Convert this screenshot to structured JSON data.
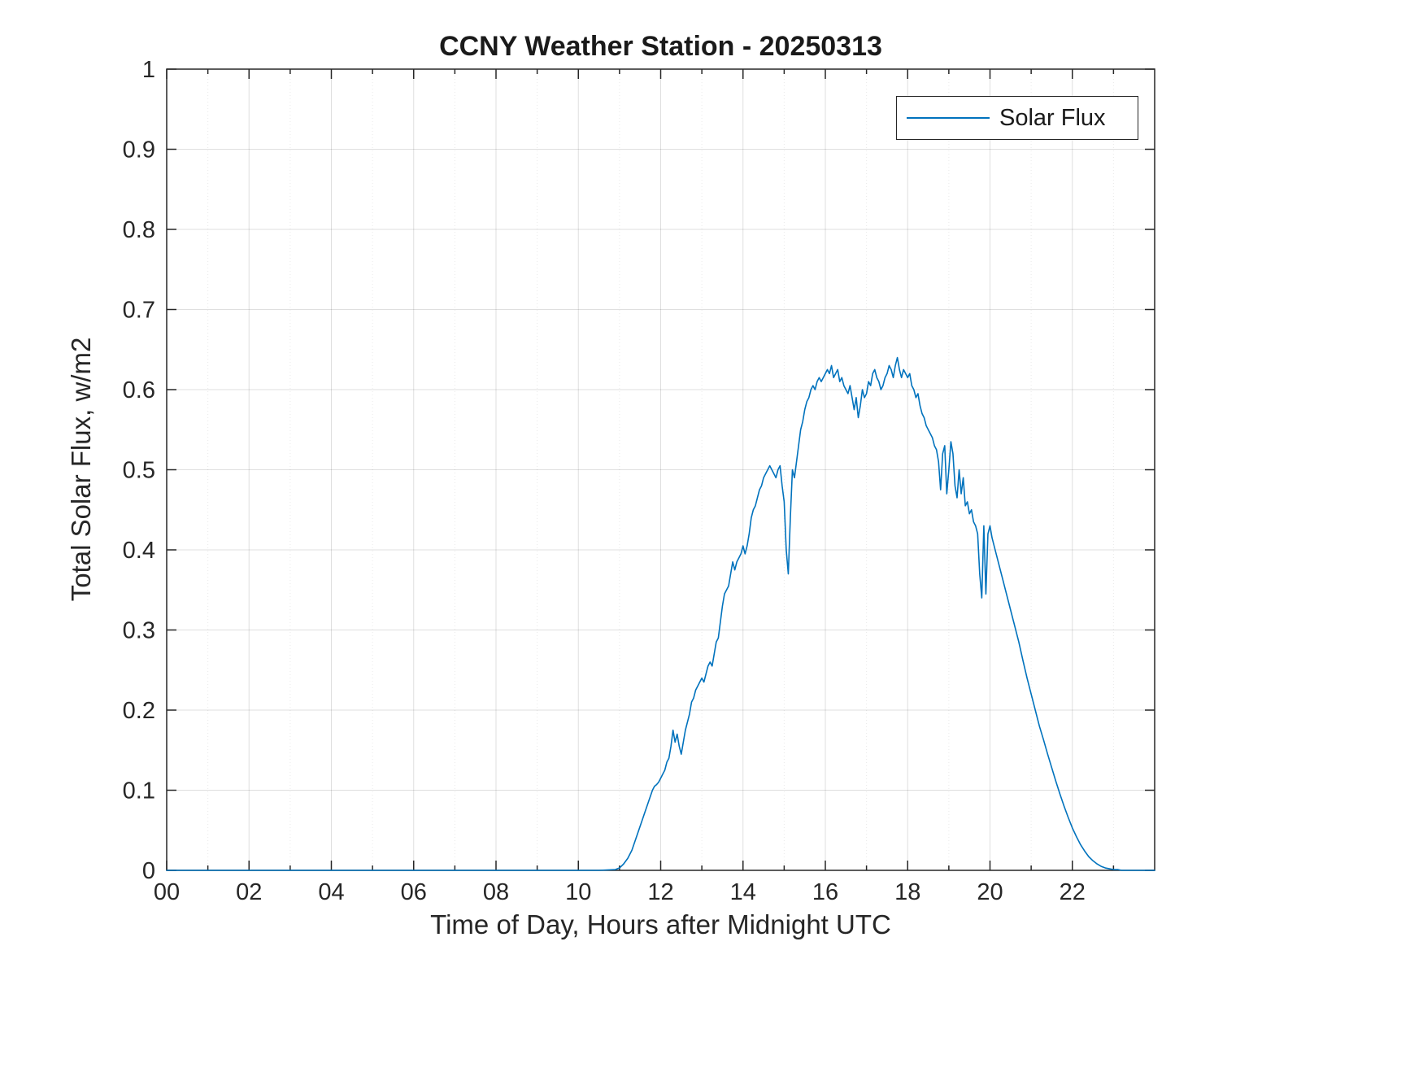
{
  "chart_data": {
    "type": "line",
    "title": "CCNY Weather Station - 20250313",
    "xlabel": "Time of Day, Hours after Midnight UTC",
    "ylabel": "Total Solar Flux, w/m2",
    "xlim": [
      0,
      24
    ],
    "ylim": [
      0,
      1
    ],
    "grid": true,
    "x_minor_step": 1,
    "legend": {
      "position": "northeast",
      "entries": [
        "Solar Flux"
      ]
    },
    "colors": {
      "line": "#0072BD",
      "axis": "#262626",
      "grid": "#262626",
      "background": "#ffffff"
    },
    "xticks": {
      "values": [
        0,
        2,
        4,
        6,
        8,
        10,
        12,
        14,
        16,
        18,
        20,
        22
      ],
      "labels": [
        "00",
        "02",
        "04",
        "06",
        "08",
        "10",
        "12",
        "14",
        "16",
        "18",
        "20",
        "22"
      ]
    },
    "yticks": {
      "values": [
        0,
        0.1,
        0.2,
        0.3,
        0.4,
        0.5,
        0.6,
        0.7,
        0.8,
        0.9,
        1
      ],
      "labels": [
        "0",
        "0.1",
        "0.2",
        "0.3",
        "0.4",
        "0.5",
        "0.6",
        "0.7",
        "0.8",
        "0.9",
        "1"
      ]
    },
    "series": [
      {
        "name": "Solar Flux",
        "color": "#0072BD",
        "points": [
          [
            0,
            0
          ],
          [
            1,
            0
          ],
          [
            2,
            0
          ],
          [
            3,
            0
          ],
          [
            4,
            0
          ],
          [
            5,
            0
          ],
          [
            6,
            0
          ],
          [
            7,
            0
          ],
          [
            8,
            0
          ],
          [
            9,
            0
          ],
          [
            10,
            0
          ],
          [
            10.5,
            0
          ],
          [
            10.9,
            0.001
          ],
          [
            11,
            0.003
          ],
          [
            11.1,
            0.008
          ],
          [
            11.2,
            0.015
          ],
          [
            11.3,
            0.025
          ],
          [
            11.4,
            0.04
          ],
          [
            11.5,
            0.055
          ],
          [
            11.6,
            0.07
          ],
          [
            11.7,
            0.085
          ],
          [
            11.8,
            0.1
          ],
          [
            11.85,
            0.105
          ],
          [
            11.9,
            0.107
          ],
          [
            11.95,
            0.11
          ],
          [
            12,
            0.115
          ],
          [
            12.05,
            0.12
          ],
          [
            12.1,
            0.125
          ],
          [
            12.15,
            0.135
          ],
          [
            12.2,
            0.14
          ],
          [
            12.25,
            0.155
          ],
          [
            12.3,
            0.175
          ],
          [
            12.35,
            0.16
          ],
          [
            12.4,
            0.17
          ],
          [
            12.45,
            0.155
          ],
          [
            12.5,
            0.145
          ],
          [
            12.55,
            0.16
          ],
          [
            12.6,
            0.175
          ],
          [
            12.65,
            0.185
          ],
          [
            12.7,
            0.195
          ],
          [
            12.75,
            0.21
          ],
          [
            12.8,
            0.215
          ],
          [
            12.85,
            0.225
          ],
          [
            12.9,
            0.23
          ],
          [
            12.95,
            0.235
          ],
          [
            13,
            0.24
          ],
          [
            13.05,
            0.235
          ],
          [
            13.1,
            0.245
          ],
          [
            13.15,
            0.255
          ],
          [
            13.2,
            0.26
          ],
          [
            13.25,
            0.255
          ],
          [
            13.3,
            0.27
          ],
          [
            13.35,
            0.285
          ],
          [
            13.4,
            0.29
          ],
          [
            13.45,
            0.31
          ],
          [
            13.5,
            0.33
          ],
          [
            13.55,
            0.345
          ],
          [
            13.6,
            0.35
          ],
          [
            13.65,
            0.355
          ],
          [
            13.7,
            0.37
          ],
          [
            13.75,
            0.385
          ],
          [
            13.8,
            0.375
          ],
          [
            13.85,
            0.385
          ],
          [
            13.9,
            0.39
          ],
          [
            13.95,
            0.395
          ],
          [
            14,
            0.405
          ],
          [
            14.05,
            0.395
          ],
          [
            14.1,
            0.405
          ],
          [
            14.15,
            0.42
          ],
          [
            14.2,
            0.44
          ],
          [
            14.25,
            0.45
          ],
          [
            14.3,
            0.455
          ],
          [
            14.35,
            0.465
          ],
          [
            14.4,
            0.475
          ],
          [
            14.45,
            0.48
          ],
          [
            14.5,
            0.49
          ],
          [
            14.55,
            0.495
          ],
          [
            14.6,
            0.5
          ],
          [
            14.65,
            0.505
          ],
          [
            14.7,
            0.5
          ],
          [
            14.75,
            0.495
          ],
          [
            14.8,
            0.49
          ],
          [
            14.85,
            0.5
          ],
          [
            14.9,
            0.505
          ],
          [
            14.95,
            0.48
          ],
          [
            15,
            0.46
          ],
          [
            15.05,
            0.4
          ],
          [
            15.1,
            0.37
          ],
          [
            15.15,
            0.44
          ],
          [
            15.2,
            0.5
          ],
          [
            15.25,
            0.49
          ],
          [
            15.3,
            0.51
          ],
          [
            15.35,
            0.53
          ],
          [
            15.4,
            0.55
          ],
          [
            15.45,
            0.56
          ],
          [
            15.5,
            0.575
          ],
          [
            15.55,
            0.585
          ],
          [
            15.6,
            0.59
          ],
          [
            15.65,
            0.6
          ],
          [
            15.7,
            0.605
          ],
          [
            15.75,
            0.6
          ],
          [
            15.8,
            0.61
          ],
          [
            15.85,
            0.615
          ],
          [
            15.9,
            0.61
          ],
          [
            15.95,
            0.615
          ],
          [
            16,
            0.62
          ],
          [
            16.05,
            0.625
          ],
          [
            16.1,
            0.62
          ],
          [
            16.15,
            0.63
          ],
          [
            16.2,
            0.615
          ],
          [
            16.25,
            0.62
          ],
          [
            16.3,
            0.625
          ],
          [
            16.35,
            0.61
          ],
          [
            16.4,
            0.615
          ],
          [
            16.45,
            0.605
          ],
          [
            16.5,
            0.6
          ],
          [
            16.55,
            0.595
          ],
          [
            16.6,
            0.605
          ],
          [
            16.65,
            0.59
          ],
          [
            16.7,
            0.575
          ],
          [
            16.75,
            0.59
          ],
          [
            16.8,
            0.565
          ],
          [
            16.85,
            0.58
          ],
          [
            16.9,
            0.6
          ],
          [
            16.95,
            0.59
          ],
          [
            17,
            0.595
          ],
          [
            17.05,
            0.61
          ],
          [
            17.1,
            0.605
          ],
          [
            17.15,
            0.62
          ],
          [
            17.2,
            0.625
          ],
          [
            17.25,
            0.615
          ],
          [
            17.3,
            0.61
          ],
          [
            17.35,
            0.6
          ],
          [
            17.4,
            0.605
          ],
          [
            17.45,
            0.615
          ],
          [
            17.5,
            0.62
          ],
          [
            17.55,
            0.63
          ],
          [
            17.6,
            0.625
          ],
          [
            17.65,
            0.615
          ],
          [
            17.7,
            0.63
          ],
          [
            17.75,
            0.64
          ],
          [
            17.8,
            0.625
          ],
          [
            17.85,
            0.615
          ],
          [
            17.9,
            0.625
          ],
          [
            17.95,
            0.62
          ],
          [
            18,
            0.615
          ],
          [
            18.05,
            0.62
          ],
          [
            18.1,
            0.605
          ],
          [
            18.15,
            0.6
          ],
          [
            18.2,
            0.59
          ],
          [
            18.25,
            0.595
          ],
          [
            18.3,
            0.58
          ],
          [
            18.35,
            0.57
          ],
          [
            18.4,
            0.565
          ],
          [
            18.45,
            0.555
          ],
          [
            18.5,
            0.55
          ],
          [
            18.55,
            0.545
          ],
          [
            18.6,
            0.54
          ],
          [
            18.65,
            0.53
          ],
          [
            18.7,
            0.525
          ],
          [
            18.75,
            0.51
          ],
          [
            18.8,
            0.475
          ],
          [
            18.85,
            0.52
          ],
          [
            18.9,
            0.53
          ],
          [
            18.95,
            0.47
          ],
          [
            19,
            0.5
          ],
          [
            19.05,
            0.535
          ],
          [
            19.1,
            0.52
          ],
          [
            19.15,
            0.48
          ],
          [
            19.2,
            0.465
          ],
          [
            19.25,
            0.5
          ],
          [
            19.3,
            0.47
          ],
          [
            19.35,
            0.49
          ],
          [
            19.4,
            0.455
          ],
          [
            19.45,
            0.46
          ],
          [
            19.5,
            0.445
          ],
          [
            19.55,
            0.45
          ],
          [
            19.6,
            0.435
          ],
          [
            19.65,
            0.43
          ],
          [
            19.7,
            0.42
          ],
          [
            19.75,
            0.37
          ],
          [
            19.8,
            0.34
          ],
          [
            19.85,
            0.43
          ],
          [
            19.9,
            0.345
          ],
          [
            19.95,
            0.42
          ],
          [
            20,
            0.43
          ],
          [
            20.05,
            0.415
          ],
          [
            20.1,
            0.405
          ],
          [
            20.15,
            0.395
          ],
          [
            20.2,
            0.385
          ],
          [
            20.3,
            0.365
          ],
          [
            20.4,
            0.345
          ],
          [
            20.5,
            0.325
          ],
          [
            20.6,
            0.305
          ],
          [
            20.7,
            0.285
          ],
          [
            20.8,
            0.262
          ],
          [
            20.9,
            0.24
          ],
          [
            21,
            0.22
          ],
          [
            21.1,
            0.2
          ],
          [
            21.2,
            0.18
          ],
          [
            21.3,
            0.163
          ],
          [
            21.4,
            0.145
          ],
          [
            21.5,
            0.128
          ],
          [
            21.6,
            0.111
          ],
          [
            21.7,
            0.095
          ],
          [
            21.8,
            0.08
          ],
          [
            21.9,
            0.066
          ],
          [
            22,
            0.053
          ],
          [
            22.1,
            0.042
          ],
          [
            22.2,
            0.032
          ],
          [
            22.3,
            0.024
          ],
          [
            22.4,
            0.017
          ],
          [
            22.5,
            0.012
          ],
          [
            22.6,
            0.008
          ],
          [
            22.7,
            0.005
          ],
          [
            22.8,
            0.003
          ],
          [
            22.9,
            0.002
          ],
          [
            23,
            0.001
          ],
          [
            23.1,
            0.001
          ],
          [
            23.2,
            0
          ],
          [
            23.5,
            0
          ],
          [
            24,
            0
          ]
        ]
      }
    ]
  }
}
